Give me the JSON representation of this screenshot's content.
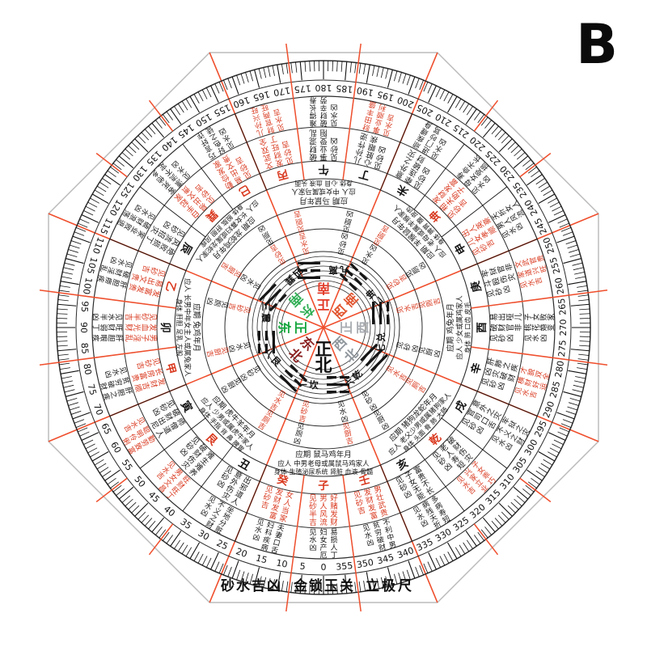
{
  "badge": {
    "letter": "B"
  },
  "footer": {
    "labels": [
      "砂水吉凶",
      "金锁玉关",
      "立极尺"
    ]
  },
  "compass": {
    "colors": {
      "ink": "#151515",
      "red_text": "#d93a20",
      "red_line": "#ef4f2d",
      "circle": "#2b2b2b",
      "board_edge": "#bcbcbc",
      "paper": "#ffffff"
    },
    "degree_ring": {
      "start": 0,
      "step": 5,
      "count": 72,
      "tick_step": 1
    },
    "center_directions": [
      {
        "deg": 0,
        "label": "正北",
        "color": "#111111"
      },
      {
        "deg": 45,
        "label": "东北",
        "color": "#8a2020"
      },
      {
        "deg": 90,
        "label": "正东",
        "color": "#14a53c"
      },
      {
        "deg": 135,
        "label": "东南",
        "color": "#2fae54"
      },
      {
        "deg": 180,
        "label": "正南",
        "color": "#e23a28"
      },
      {
        "deg": 225,
        "label": "西南",
        "color": "#e2552f"
      },
      {
        "deg": 270,
        "label": "正西",
        "color": "#a9adb2"
      },
      {
        "deg": 315,
        "label": "西北",
        "color": "#8f969c"
      }
    ],
    "sectors": [
      {
        "deg": 0,
        "trigram_num": "一",
        "trigram_name": "坎",
        "trigram_lines": [
          0,
          1,
          0
        ],
        "sand": "见砂吉",
        "sand_color": "red",
        "water": "见水凶",
        "water_color": "black",
        "toilet_kitchen": [
          {
            "text": "见厕凶",
            "color": "black"
          },
          {
            "text": "见厨吉",
            "color": "red"
          }
        ],
        "yingqi": [
          "应期 鼠马鸡年月",
          "应人 中男老母或属鼠马鸡家人",
          "身体 生殖泌尿系统 肾脏 血液 骨髓"
        ]
      },
      {
        "deg": 45,
        "trigram_num": "八",
        "trigram_name": "艮",
        "trigram_lines": [
          0,
          0,
          1
        ],
        "sand": "见砂凶",
        "sand_color": "black",
        "water": "见水吉",
        "water_color": "red",
        "toilet_kitchen": [
          {
            "text": "见厨凶",
            "color": "black"
          },
          {
            "text": "见厕吉",
            "color": "red"
          }
        ],
        "yingqi": [
          "应期 虎牛羊年月",
          "应人 少男或属虎牛家人",
          "身体 手指 背 鼻 脾胃"
        ]
      },
      {
        "deg": 90,
        "trigram_num": "三",
        "trigram_name": "震",
        "trigram_lines": [
          1,
          0,
          0
        ],
        "sand": "见砂吉",
        "sand_color": "red",
        "water": "见水凶",
        "water_color": "black",
        "toilet_kitchen": [
          {
            "text": "见厕凶",
            "color": "black"
          },
          {
            "text": "见厨吉",
            "color": "red"
          }
        ],
        "yingqi": [
          "应期 兔鸡年月",
          "应人 长男中年女主人或属兔家人",
          "身体 肝胆 足乳 左股"
        ]
      },
      {
        "deg": 135,
        "trigram_num": "四",
        "trigram_name": "巽",
        "trigram_lines": [
          0,
          1,
          1
        ],
        "sand": "见砂吉",
        "sand_color": "red",
        "water": "见水凶",
        "water_color": "black",
        "toilet_kitchen": [
          {
            "text": "见厕凶",
            "color": "black"
          },
          {
            "text": "见厨吉",
            "color": "red"
          }
        ],
        "yingqi": [
          "应期 龙蛇鸡年月",
          "应人 长女寡妇或属龙蛇家人",
          "身体 股肱 肝胆 风疾"
        ]
      },
      {
        "deg": 180,
        "trigram_num": "九",
        "trigram_name": "离",
        "trigram_lines": [
          1,
          0,
          1
        ],
        "sand": "见砂凶",
        "sand_color": "black",
        "water": "见水吉",
        "water_color": "red",
        "toilet_kitchen": [
          {
            "text": "见厨凶",
            "color": "black"
          },
          {
            "text": "见厕吉",
            "color": "red"
          }
        ],
        "yingqi": [
          "应期 马鼠年月",
          "应人 中女或属马家人",
          "身体 心目 血液 头面"
        ]
      },
      {
        "deg": 225,
        "trigram_num": "二",
        "trigram_name": "坤",
        "trigram_lines": [
          0,
          0,
          0
        ],
        "sand": "见砂吉",
        "sand_color": "red",
        "water": "见水凶",
        "water_color": "black",
        "toilet_kitchen": [
          {
            "text": "见厕凶",
            "color": "black"
          },
          {
            "text": "见厨吉",
            "color": "red"
          }
        ],
        "yingqi": [
          "应期 羊猴鼠年月",
          "应人 老母或属羊猴家人",
          "身体 脾胃 腹 皮肉"
        ]
      },
      {
        "deg": 270,
        "trigram_num": "七",
        "trigram_name": "兑",
        "trigram_lines": [
          1,
          1,
          0
        ],
        "sand": "见砂凶",
        "sand_color": "black",
        "water": "见水吉",
        "water_color": "red",
        "toilet_kitchen": [
          {
            "text": "见厨凶",
            "color": "black"
          },
          {
            "text": "见厕吉",
            "color": "red"
          }
        ],
        "yingqi": [
          "应期 鸡兔年月",
          "应人 少女或属鸡家人",
          "身体 肺 口齿 皮毛"
        ]
      },
      {
        "deg": 315,
        "trigram_num": "六",
        "trigram_name": "乾",
        "trigram_lines": [
          1,
          1,
          1
        ],
        "sand": "见砂凶",
        "sand_color": "black",
        "water": "见水吉",
        "water_color": "red",
        "toilet_kitchen": [
          {
            "text": "见厨凶",
            "color": "black"
          },
          {
            "text": "见厕吉",
            "color": "red"
          }
        ],
        "yingqi": [
          "应期 猪狗龙蛇年月",
          "应人 老父少男或属猪狗家人",
          "身体 头面 骨 肺 大肠"
        ]
      }
    ],
    "mountains": [
      {
        "deg": 0,
        "name": "子",
        "color": "red",
        "sand_color": "red",
        "sand": [
          "见砂半吉",
          "男人风流",
          "好赌发财"
        ],
        "water_color": "black",
        "water": [
          "见水凶",
          "妇女产厄",
          "易损人丁"
        ]
      },
      {
        "deg": 15,
        "name": "癸",
        "color": "red",
        "sand_color": "red",
        "sand": [
          "见砂吉",
          "发财发富",
          "女人当家"
        ],
        "water_color": "black",
        "water": [
          "见水凶",
          "妇科疾病",
          "夫妻口舌"
        ]
      },
      {
        "deg": 30,
        "name": "丑",
        "color": "black",
        "sand_color": "black",
        "sand": [
          "见砂凶",
          "意外伤灾",
          "出邪道人"
        ],
        "water_color": "black",
        "water": [
          "见水凶",
          "不义之财",
          "坐地分赃"
        ]
      },
      {
        "deg": 45,
        "name": "艮",
        "color": "red",
        "sand_color": "black",
        "sand": [
          "见砂凶",
          "破财伤灾",
          "难生难养"
        ],
        "water_color": "red",
        "water": [
          "见水吉",
          "男女文昌",
          "旺财旺丁"
        ]
      },
      {
        "deg": 60,
        "name": "寅",
        "color": "black",
        "sand_color": "black",
        "sand": [
          "见砂凶",
          "破财出尼",
          "师僧道人"
        ],
        "water_color": "red",
        "water": [
          "见水吉",
          "聪明伶俐",
          "勤劳致富"
        ]
      },
      {
        "deg": 75,
        "name": "甲",
        "color": "red",
        "sand_color": "red",
        "sand": [
          "见砂吉",
          "长房富贵",
          "发财吉顺"
        ],
        "water_color": "black",
        "water": [
          "见水凶",
          "贫穷破财",
          "肝胆之疾"
        ]
      },
      {
        "deg": 90,
        "name": "卯",
        "color": "black",
        "sand_color": "red",
        "sand": [
          "见砂半吉",
          "发血光财",
          "男子淫乱"
        ],
        "water_color": "black",
        "water": [
          "见水半凶",
          "旺财弱丁",
          "肝胆眼疾"
        ]
      },
      {
        "deg": 105,
        "name": "乙",
        "color": "red",
        "sand_color": "red",
        "sand": [
          "见砂吉",
          "易出文贵",
          "发富发贵"
        ],
        "water_color": "black",
        "water": [
          "见水凶",
          "破财淫乱",
          "肝胆痨疾"
        ]
      },
      {
        "deg": 120,
        "name": "辰",
        "color": "black",
        "sand_color": "black",
        "sand": [
          "见砂凶",
          "风流招灾",
          "绝败损丁"
        ],
        "water_color": "black",
        "water": [
          "见水凶",
          "破财浪荡",
          "家业败退"
        ]
      },
      {
        "deg": 135,
        "name": "巽",
        "color": "red",
        "sand_color": "red",
        "sand": [
          "见砂吉",
          "易出文贵",
          "白手起家"
        ],
        "water_color": "black",
        "water": [
          "见水凶",
          "漂流不定",
          "客死他乡"
        ]
      },
      {
        "deg": 150,
        "name": "巳",
        "color": "red",
        "sand_color": "red",
        "sand": [
          "见砂吉",
          "易出文贵",
          "勤俭发家"
        ],
        "water_color": "black",
        "water": [
          "见水凶",
          "好色之徒",
          "巧言奸诈"
        ]
      },
      {
        "deg": 165,
        "name": "丙",
        "color": "red",
        "sand_color": "red",
        "sand": [
          "见砂吉",
          "发财旺丁",
          "文武双全"
        ],
        "water_color": "red",
        "water": [
          "见水吉",
          "财官两旺",
          "儿孙兴旺"
        ]
      },
      {
        "deg": 180,
        "name": "午",
        "color": "black",
        "sand_color": "black",
        "sand": [
          "见砂凶",
          "事业受阻",
          "破财混乱"
        ],
        "water_color": "black",
        "water": [
          "见水凶",
          "破财辛劳",
          "难得长寿"
        ]
      },
      {
        "deg": 195,
        "name": "丁",
        "color": "black",
        "sand_color": "black",
        "sand": [
          "见砂凶",
          "心脏眼疾",
          "儿孙忤逆"
        ],
        "water_color": "red",
        "water": [
          "见水吉",
          "事业顺利",
          "财田丰盛"
        ]
      },
      {
        "deg": 210,
        "name": "未",
        "color": "black",
        "sand_color": "black",
        "sand": [
          "见砂凶",
          "牵连破财",
          "意外之灾"
        ],
        "water_color": "black",
        "water": [
          "见水凶",
          "进门吵骂",
          "顽疾缠身"
        ]
      },
      {
        "deg": 225,
        "name": "坤",
        "color": "red",
        "sand_color": "red",
        "sand": [
          "见砂吉",
          "相夫助子",
          "发财发富"
        ],
        "water_color": "black",
        "water": [
          "见水凶",
          "母女受损",
          "寿命不长"
        ]
      },
      {
        "deg": 240,
        "name": "申",
        "color": "black",
        "sand_color": "red",
        "sand": [
          "见砂吉",
          "儿女孝顺",
          "出人英豪"
        ],
        "water_color": "black",
        "water": [
          "见水凶",
          "男人风流",
          "夭折女人"
        ]
      },
      {
        "deg": 255,
        "name": "庚",
        "color": "black",
        "sand_color": "black",
        "sand": [
          "见砂凶",
          "斗殴伤灾",
          "牢狱官非"
        ],
        "water_color": "red",
        "water": [
          "见水吉",
          "家道兴旺",
          "文武官贵"
        ]
      },
      {
        "deg": 270,
        "name": "酉",
        "color": "black",
        "sand_color": "black",
        "sand": [
          "见砂凶",
          "破财官非",
          "易出哑儿"
        ],
        "water_color": "black",
        "water": [
          "见水凶",
          "桃花婚变",
          "子女败家"
        ]
      },
      {
        "deg": 285,
        "name": "辛",
        "color": "black",
        "sand_color": "black",
        "sand": [
          "见砂凶",
          "凶灾破财",
          "肝肺之疾"
        ],
        "water_color": "red",
        "water": [
          "见水吉",
          "横财好运",
          "才貌双全"
        ]
      },
      {
        "deg": 300,
        "name": "戌",
        "color": "black",
        "sand_color": "black",
        "sand": [
          "见砂凶",
          "官司口舌",
          "意外之灾"
        ],
        "water_color": "black",
        "water": [
          "见水凶",
          "不义之财",
          "牢狱之灾"
        ]
      },
      {
        "deg": 315,
        "name": "乾",
        "color": "red",
        "sand_color": "black",
        "sand": [
          "见砂凶",
          "老人寿短",
          "破财伤灾"
        ],
        "water_color": "red",
        "water": [
          "见水吉",
          "兴家立业",
          "子女乖巧"
        ]
      },
      {
        "deg": 330,
        "name": "亥",
        "color": "black",
        "sand_color": "black",
        "sand": [
          "见砂凶",
          "子女无能",
          "富贵不长"
        ],
        "water_color": "black",
        "water": [
          "见水凶",
          "病残夭折",
          "多病寿短"
        ]
      },
      {
        "deg": 345,
        "name": "壬",
        "color": "red",
        "sand_color": "red",
        "sand": [
          "见砂吉",
          "发财发富",
          "男壮武贵"
        ],
        "water_color": "black",
        "water": [
          "见水凶",
          "贫穷破财",
          "不利中男"
        ]
      }
    ]
  }
}
